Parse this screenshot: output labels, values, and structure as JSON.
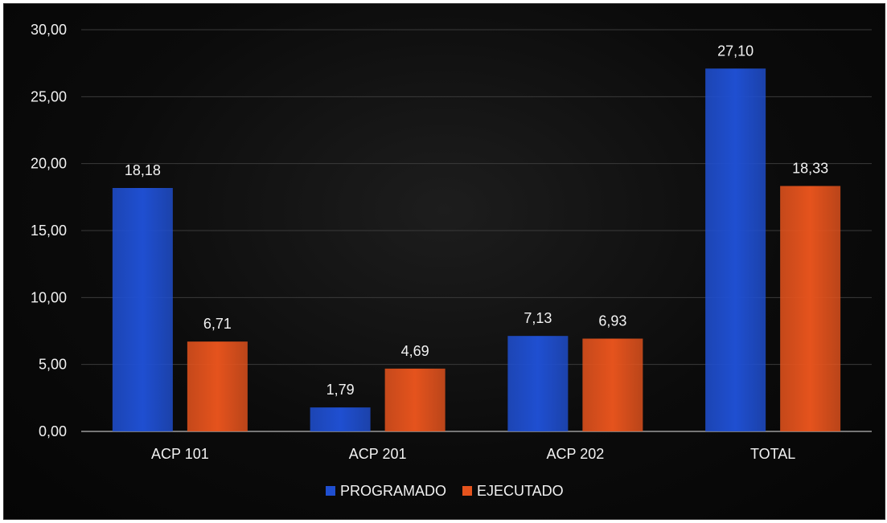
{
  "chart_data": {
    "type": "bar",
    "categories": [
      "ACP 101",
      "ACP 201",
      "ACP 202",
      "TOTAL"
    ],
    "series": [
      {
        "name": "PROGRAMADO",
        "values": [
          18.18,
          1.79,
          7.13,
          27.1
        ],
        "labels": [
          "18,18",
          "1,79",
          "7,13",
          "27,10"
        ],
        "color": "#1f4fd1"
      },
      {
        "name": "EJECUTADO",
        "values": [
          6.71,
          4.69,
          6.93,
          18.33
        ],
        "labels": [
          "6,71",
          "4,69",
          "6,93",
          "18,33"
        ],
        "color": "#e5531d"
      }
    ],
    "ylim": [
      0,
      30
    ],
    "yticks": [
      0,
      5,
      10,
      15,
      20,
      25,
      30
    ],
    "ytick_labels": [
      "0,00",
      "5,00",
      "10,00",
      "15,00",
      "20,00",
      "25,00",
      "30,00"
    ],
    "grid": true,
    "legend_position": "bottom",
    "title": "",
    "xlabel": "",
    "ylabel": ""
  },
  "colors": {
    "background": "#0b0b0b",
    "text": "#f2f2f2",
    "grid": "#3a3a3a"
  }
}
